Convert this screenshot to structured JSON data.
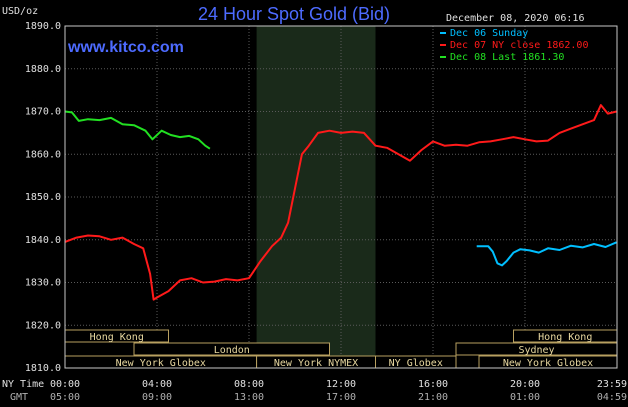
{
  "chart_data": {
    "type": "line",
    "title": "24 Hour Spot Gold (Bid)",
    "website": "www.kitco.com",
    "timestamp": "December 08, 2020 06:16",
    "ylabel": "USD/oz",
    "ylim": [
      1810,
      1890
    ],
    "y_ticks": [
      "1890.0",
      "1880.0",
      "1870.0",
      "1860.0",
      "1850.0",
      "1840.0",
      "1830.0",
      "1820.0",
      "1810.0"
    ],
    "y_tick_values": [
      1890,
      1880,
      1870,
      1860,
      1850,
      1840,
      1830,
      1820,
      1810
    ],
    "xlim": [
      0,
      24
    ],
    "x_ticks_ny": [
      "00:00",
      "04:00",
      "08:00",
      "12:00",
      "16:00",
      "20:00",
      "23:59"
    ],
    "x_ticks_gmt": [
      "05:00",
      "09:00",
      "13:00",
      "17:00",
      "21:00",
      "01:00",
      "04:59"
    ],
    "x_tick_values": [
      0,
      4,
      8,
      12,
      16,
      20,
      23.983
    ],
    "x_row_labels": {
      "ny": "NY Time",
      "gmt": "GMT"
    },
    "legend": [
      {
        "label": "Dec 06 Sunday",
        "color": "#00bfff"
      },
      {
        "label": "Dec 07 NY close 1862.00",
        "color": "#ff1a1a"
      },
      {
        "label": "Dec 08 Last 1861.30",
        "color": "#22e022"
      }
    ],
    "nymex_shade": [
      8.33,
      13.5
    ],
    "sessions": [
      {
        "label": "Hong Kong",
        "start": 0,
        "end": 4.5,
        "row": 0
      },
      {
        "label": "Hong Kong",
        "start": 19.5,
        "end": 24,
        "row": 0
      },
      {
        "label": "London",
        "start": 3,
        "end": 11.5,
        "row": 1
      },
      {
        "label": "Sydney",
        "start": 17,
        "end": 24,
        "row": 1
      },
      {
        "label": "New York Globex",
        "start": 0,
        "end": 8.33,
        "row": 2
      },
      {
        "label": "New York NYMEX",
        "start": 8.33,
        "end": 13.5,
        "row": 2
      },
      {
        "label": "NY Globex",
        "start": 13.5,
        "end": 17,
        "row": 2
      },
      {
        "label": "New York Globex",
        "start": 18,
        "end": 24,
        "row": 2
      }
    ],
    "series": [
      {
        "name": "Dec 06 Sunday",
        "color": "#00bfff",
        "x": [
          17.9,
          18.4,
          18.6,
          18.8,
          19.0,
          19.2,
          19.5,
          19.8,
          20.2,
          20.6,
          21.0,
          21.5,
          22.0,
          22.5,
          23.0,
          23.5,
          23.98
        ],
        "y": [
          1838.5,
          1838.5,
          1837.2,
          1834.5,
          1834.0,
          1835.0,
          1837.0,
          1837.8,
          1837.5,
          1837.0,
          1838.0,
          1837.6,
          1838.6,
          1838.2,
          1839.0,
          1838.3,
          1839.4
        ]
      },
      {
        "name": "Dec 07 NY close 1862.00",
        "color": "#ff1a1a",
        "x": [
          0.0,
          0.5,
          1.0,
          1.5,
          2.0,
          2.5,
          3.0,
          3.4,
          3.7,
          3.85,
          4.0,
          4.5,
          5.0,
          5.5,
          6.0,
          6.5,
          7.0,
          7.5,
          8.0,
          8.5,
          9.0,
          9.4,
          9.7,
          10.0,
          10.3,
          10.6,
          11.0,
          11.5,
          12.0,
          12.5,
          13.0,
          13.5,
          14.0,
          14.5,
          15.0,
          15.5,
          16.0,
          16.5,
          17.0,
          17.5,
          18.0,
          18.5,
          19.0,
          19.5,
          20.0,
          20.5,
          21.0,
          21.5,
          22.0,
          22.5,
          23.0,
          23.3,
          23.6,
          23.98
        ],
        "y": [
          1839.5,
          1840.5,
          1841.0,
          1840.8,
          1840.0,
          1840.5,
          1839.0,
          1838.0,
          1832.0,
          1826.0,
          1826.5,
          1828.0,
          1830.5,
          1831.0,
          1830.0,
          1830.2,
          1830.8,
          1830.5,
          1831.0,
          1835.0,
          1838.5,
          1840.5,
          1844.0,
          1852.0,
          1860.0,
          1862.0,
          1865.0,
          1865.5,
          1865.0,
          1865.3,
          1865.0,
          1862.0,
          1861.5,
          1860.0,
          1858.5,
          1861.0,
          1863.0,
          1862.0,
          1862.2,
          1862.0,
          1862.8,
          1863.0,
          1863.5,
          1864.0,
          1863.5,
          1863.0,
          1863.2,
          1865.0,
          1866.0,
          1867.0,
          1868.0,
          1871.5,
          1869.5,
          1870.0
        ]
      },
      {
        "name": "Dec 08 Last 1861.30",
        "color": "#22e022",
        "x": [
          0.0,
          0.3,
          0.6,
          1.0,
          1.5,
          2.0,
          2.5,
          3.0,
          3.5,
          3.8,
          4.2,
          4.6,
          5.0,
          5.4,
          5.8,
          6.1,
          6.3
        ],
        "y": [
          1870.0,
          1869.8,
          1867.8,
          1868.2,
          1868.0,
          1868.5,
          1867.0,
          1866.8,
          1865.5,
          1863.5,
          1865.5,
          1864.5,
          1864.0,
          1864.3,
          1863.5,
          1862.0,
          1861.3
        ]
      }
    ]
  }
}
